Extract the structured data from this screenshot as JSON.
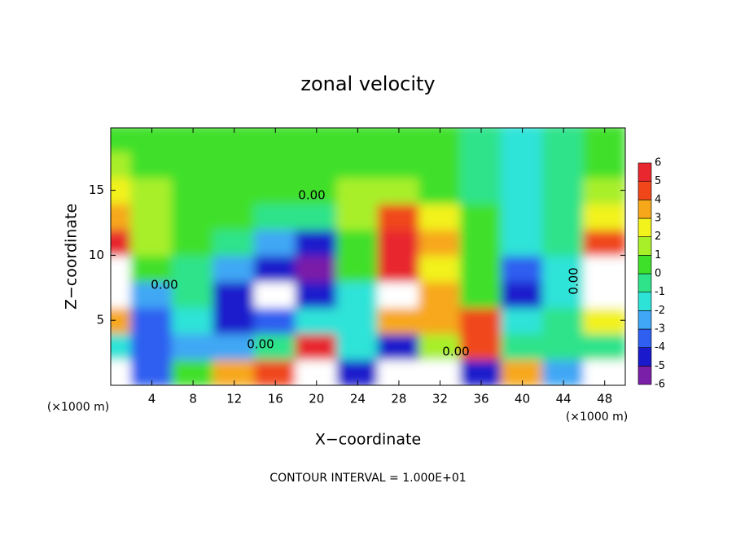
{
  "chart_data": {
    "type": "contour",
    "title": "zonal velocity",
    "x_label": "X−coordinate",
    "y_label": "Z−coordinate",
    "x_unit_left": "(×1000 m)",
    "x_unit_right": "(×1000 m)",
    "footnote": "CONTOUR INTERVAL = 1.000E+01",
    "xlim": [
      0,
      50
    ],
    "ylim": [
      0,
      19.8
    ],
    "xticks": [
      4,
      8,
      12,
      16,
      20,
      24,
      28,
      32,
      36,
      40,
      44,
      48
    ],
    "yticks": [
      5,
      10,
      15
    ],
    "x": [
      0,
      4,
      8,
      12,
      16,
      20,
      24,
      28,
      32,
      36,
      40,
      44,
      48
    ],
    "z": [
      1,
      3,
      5,
      7,
      9,
      11,
      13,
      15,
      17,
      19
    ],
    "values": [
      [
        -8,
        -3,
        1,
        4,
        5,
        8,
        -4,
        -8,
        -8,
        -4,
        4,
        -2,
        -8
      ],
      [
        -1,
        -3,
        -2.5,
        -2,
        0,
        6,
        -1,
        -4,
        2,
        5,
        0,
        0,
        -0.5
      ],
      [
        4,
        -3,
        -1,
        -4,
        -3,
        -1,
        -1,
        4,
        4,
        5,
        -1,
        -0.5,
        3
      ],
      [
        8,
        -2,
        0,
        -4,
        -8,
        -4,
        -1,
        6.5,
        4,
        0.5,
        -4,
        -1,
        8
      ],
      [
        8,
        0.5,
        -0.5,
        -2,
        -4,
        -5,
        0.5,
        6,
        3,
        1,
        -3,
        -1,
        8
      ],
      [
        6,
        1.5,
        0.2,
        0,
        -2.5,
        -4,
        1,
        6,
        4,
        1,
        -1.5,
        -0.5,
        5
      ],
      [
        4,
        2,
        0.5,
        0.3,
        -0.5,
        -0.5,
        2,
        5,
        3,
        0.5,
        -1,
        0,
        3
      ],
      [
        3,
        1.5,
        0.5,
        0.3,
        0.2,
        0.3,
        1.2,
        1.5,
        1,
        -0.3,
        -1.5,
        -0.5,
        2
      ],
      [
        2,
        1,
        0.5,
        0.3,
        0.3,
        0.3,
        0.5,
        0.5,
        0.3,
        -0.5,
        -1.2,
        -0.5,
        1
      ],
      [
        1,
        0.5,
        0.5,
        0.4,
        0.4,
        0.4,
        0.5,
        0.5,
        0.3,
        -0.5,
        -1,
        -0.5,
        0.5
      ]
    ],
    "levels": [
      -6,
      -5,
      -4,
      -3,
      -2,
      -1,
      0,
      1,
      2,
      3,
      4,
      5,
      6
    ],
    "level_colors": [
      "#7a1fa8",
      "#1a1acc",
      "#2f5ff0",
      "#3fa7f5",
      "#2de3d8",
      "#2ee38a",
      "#3fe02a",
      "#a8ef2a",
      "#f2f21c",
      "#f7a81a",
      "#f0461a",
      "#e8282e",
      "#f5a8a8"
    ],
    "out_of_range_color": "#ffffff",
    "contour_labels": [
      "0.00",
      "0.00",
      "0.00",
      "0.00",
      "0.00"
    ]
  }
}
